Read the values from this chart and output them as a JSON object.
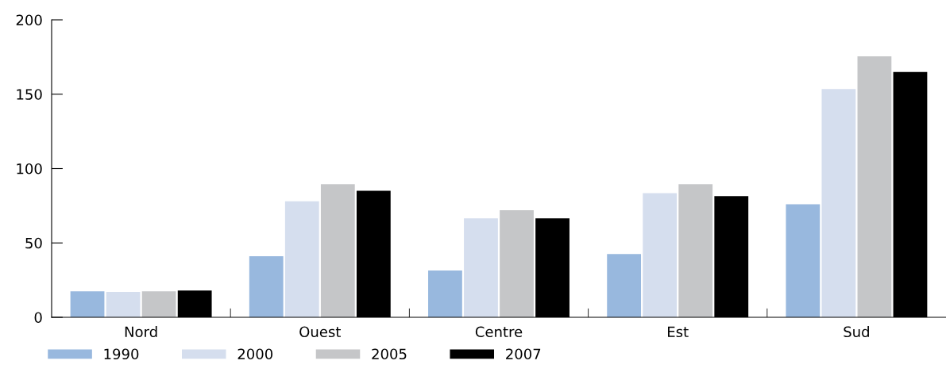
{
  "chart_data": {
    "type": "bar",
    "categories": [
      "Nord",
      "Ouest",
      "Centre",
      "Est",
      "Sud"
    ],
    "series": [
      {
        "name": "1990",
        "color": "#98b8de",
        "values": [
          17.5,
          41,
          31.5,
          42.5,
          76
        ]
      },
      {
        "name": "2000",
        "color": "#d5deee",
        "values": [
          17,
          78,
          66.5,
          83.5,
          153.5
        ]
      },
      {
        "name": "2005",
        "color": "#c5c6c8",
        "values": [
          17.5,
          89.5,
          72,
          89.5,
          175.5
        ]
      },
      {
        "name": "2007",
        "color": "#000000",
        "values": [
          18,
          85,
          66.5,
          81.5,
          165
        ]
      }
    ],
    "ylim": [
      0,
      200
    ],
    "yticks": [
      0,
      50,
      100,
      150,
      200
    ],
    "grid": false,
    "legend": "bottom left"
  }
}
